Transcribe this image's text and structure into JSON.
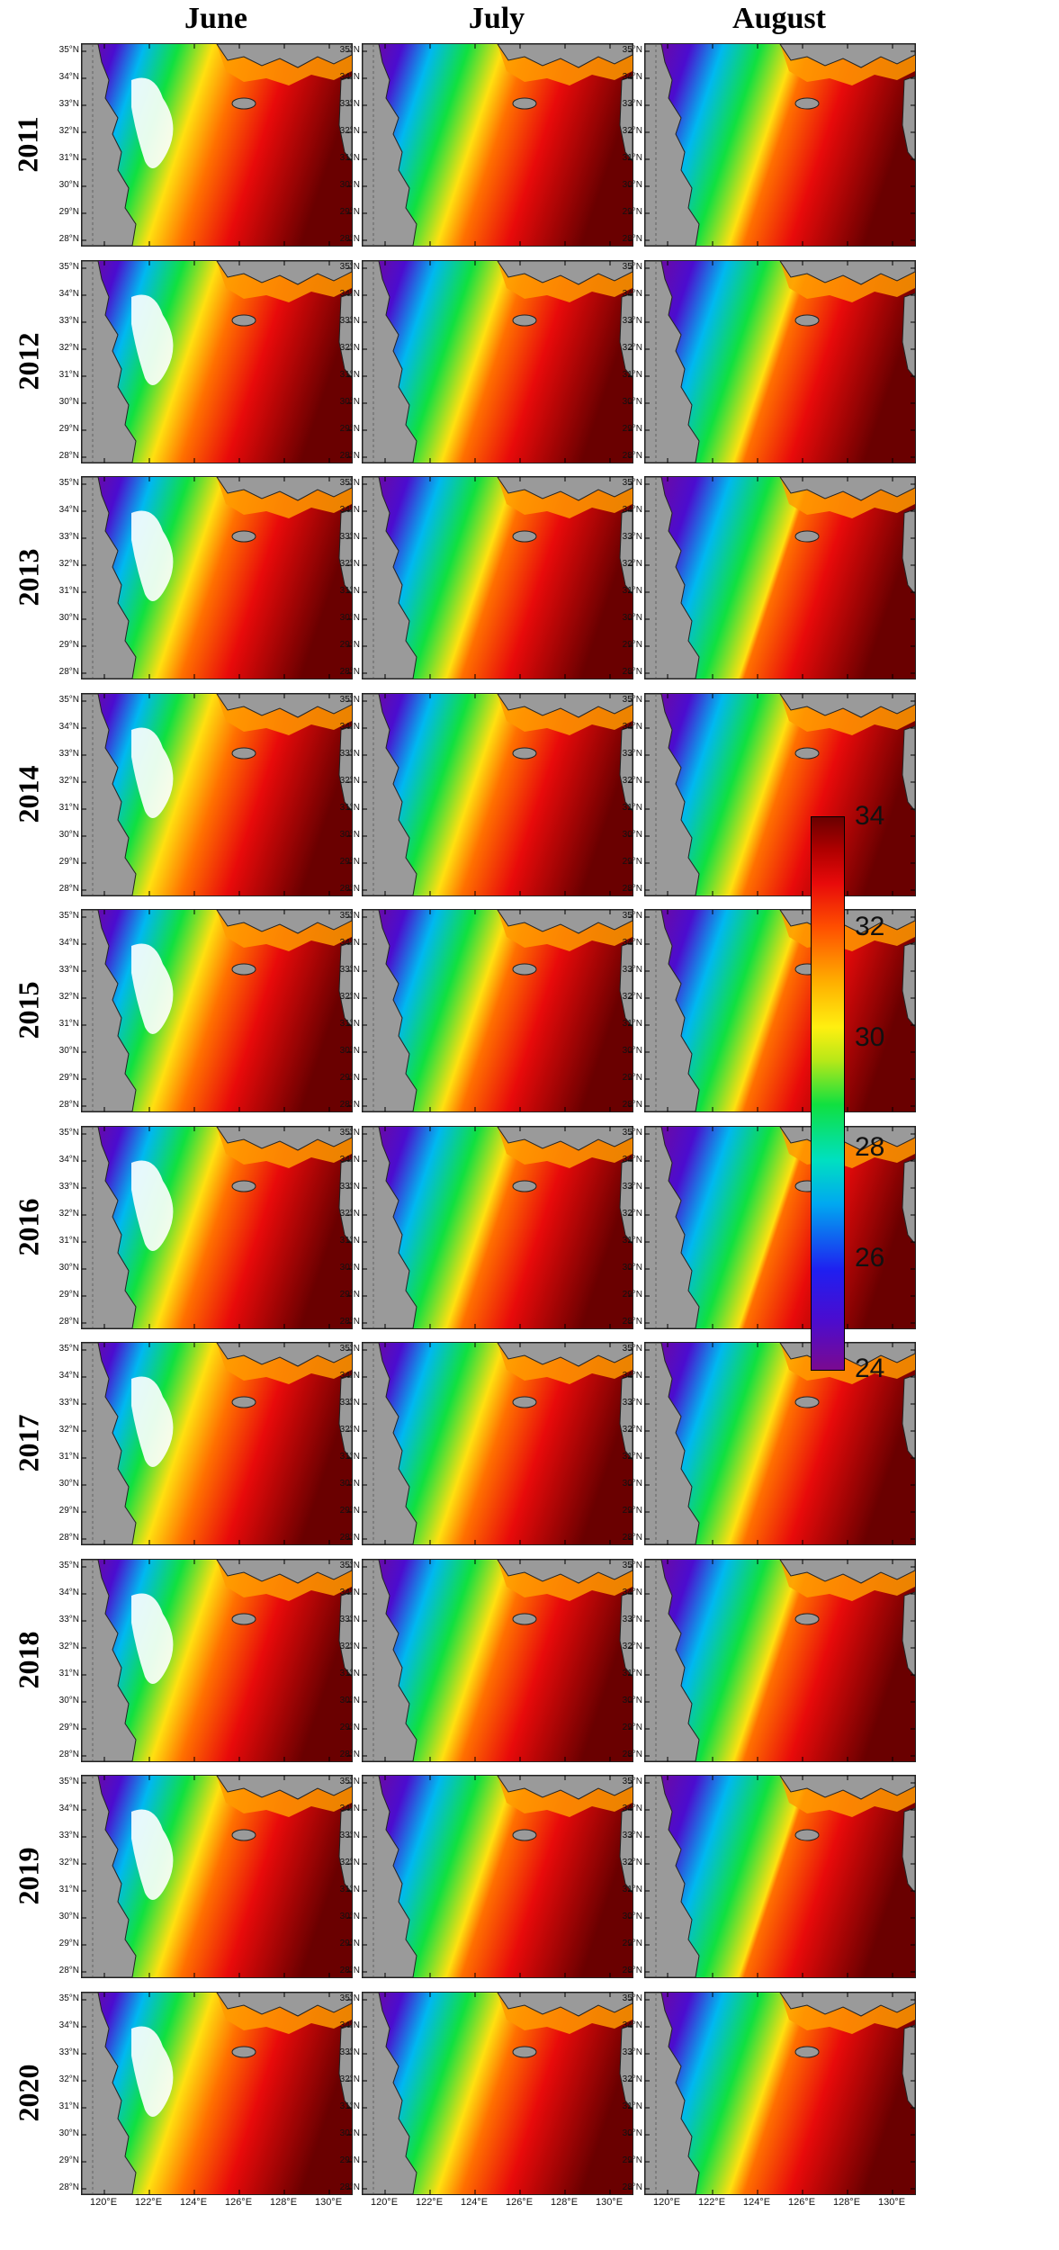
{
  "columns": [
    "June",
    "July",
    "August"
  ],
  "rows": [
    "2011",
    "2012",
    "2013",
    "2014",
    "2015",
    "2016",
    "2017",
    "2018",
    "2019",
    "2020"
  ],
  "latitude_labels": [
    "35°N",
    "34°N",
    "33°N",
    "32°N",
    "31°N",
    "30°N",
    "29°N",
    "28°N"
  ],
  "longitude_labels": [
    "120°E",
    "122°E",
    "124°E",
    "126°E",
    "128°E",
    "130°E"
  ],
  "colorbar": {
    "ticks": [
      "34",
      "32",
      "30",
      "28",
      "26",
      "24"
    ],
    "min": 24,
    "max": 34
  },
  "colors": {
    "land": "#9a9a9a",
    "missing": "#ffffff",
    "low": "#7a0a90",
    "mid": "#10e040",
    "high": "#6a0000"
  },
  "chart_data": {
    "type": "heatmap",
    "title": "",
    "panels_x": [
      "June",
      "July",
      "August"
    ],
    "panels_y": [
      "2011",
      "2012",
      "2013",
      "2014",
      "2015",
      "2016",
      "2017",
      "2018",
      "2019",
      "2020"
    ],
    "xlim": [
      119,
      131
    ],
    "ylim": [
      28,
      35.5
    ],
    "x_ticks": [
      "120°E",
      "122°E",
      "124°E",
      "126°E",
      "128°E",
      "130°E"
    ],
    "y_ticks": [
      "35°N",
      "34°N",
      "33°N",
      "32°N",
      "31°N",
      "30°N",
      "29°N",
      "28°N"
    ],
    "color_range": [
      24,
      34
    ],
    "colorbar_ticks": [
      24,
      26,
      28,
      30,
      32,
      34
    ]
  }
}
